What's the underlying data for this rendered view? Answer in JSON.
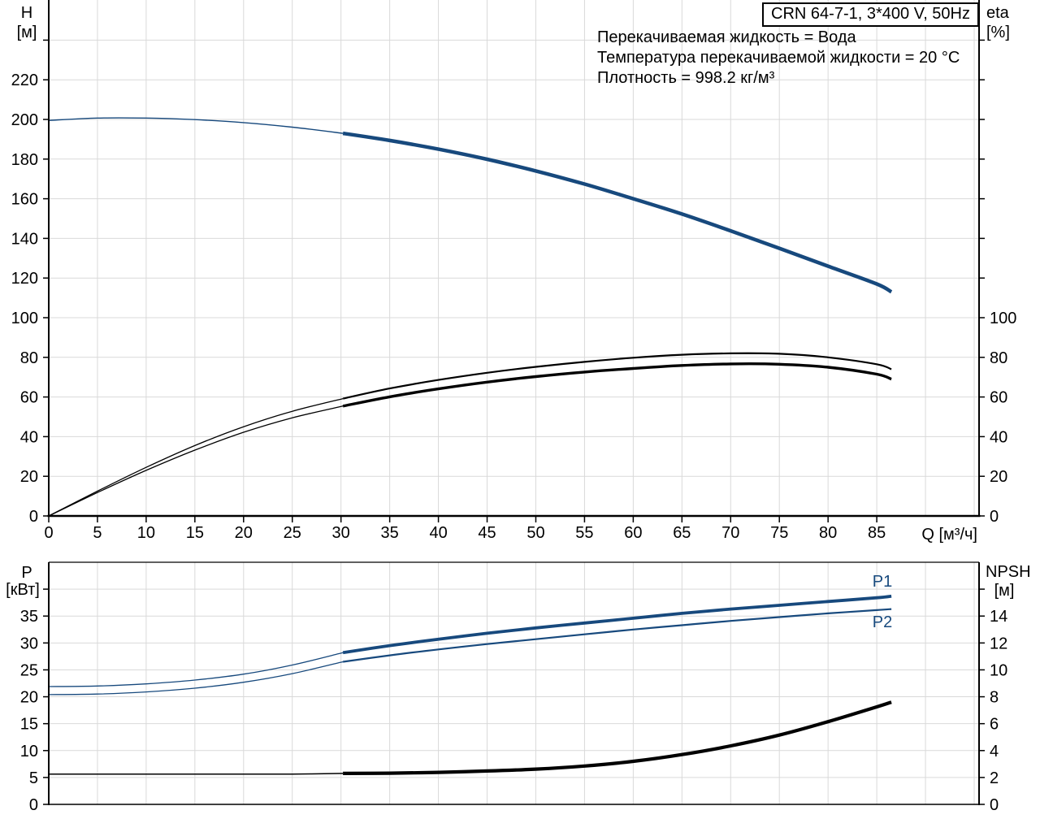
{
  "header": {
    "title": "CRN 64-7-1, 3*400 V, 50Hz",
    "info_lines": [
      "Перекачиваемая жидкость = Вода",
      "Температура перекачиваемой жидкости = 20 °C",
      "Плотность = 998.2 кг/м³"
    ]
  },
  "labels": {
    "h": "H",
    "h_unit": "[м]",
    "eta": "eta",
    "eta_unit": "[%]",
    "p": "P",
    "p_unit": "[кВт]",
    "npsh": "NPSH",
    "npsh_unit": "[м]",
    "q": "Q [м³/ч]",
    "p1": "P1",
    "p2": "P2"
  },
  "colors": {
    "curve_blue": "#17497d",
    "curve_black": "#000000",
    "grid": "#d9d9d9",
    "axis": "#000000"
  },
  "chart_data": {
    "type": "line",
    "title": "CRN 64-7-1, 3*400 V, 50Hz",
    "grid": "on",
    "x_axis": {
      "label": "Q [м³/ч]",
      "unit": "м³/ч",
      "lim": [
        0,
        95.5
      ],
      "ticks_labeled": [
        0,
        5,
        10,
        15,
        20,
        25,
        30,
        35,
        40,
        45,
        50,
        55,
        60,
        65,
        70,
        75,
        80,
        85
      ],
      "grid": [
        5,
        10,
        15,
        20,
        25,
        30,
        35,
        40,
        45,
        50,
        55,
        60,
        65,
        70,
        75,
        80,
        85,
        90,
        95
      ]
    },
    "top_chart": {
      "left_axis": {
        "label": "H [м]",
        "lim": [
          0,
          260
        ],
        "ticks": [
          0,
          20,
          40,
          60,
          80,
          100,
          120,
          140,
          160,
          180,
          200,
          220,
          240
        ],
        "tick_labels": [
          "0",
          "20",
          "40",
          "60",
          "80",
          "100",
          "120",
          "140",
          "160",
          "180",
          "200",
          "220"
        ],
        "grid": [
          20,
          40,
          60,
          80,
          100,
          120,
          140,
          160,
          180,
          200,
          220,
          240
        ]
      },
      "right_axis": {
        "label": "eta [%]",
        "lim": [
          0,
          100
        ],
        "ticks": [
          0,
          20,
          40,
          60,
          80,
          100,
          120,
          140,
          160,
          180,
          200,
          220,
          240
        ],
        "tick_labels": [
          "0",
          "20",
          "40",
          "60",
          "80",
          "100"
        ],
        "note": "1 % per 1 м of left axis"
      }
    },
    "bottom_chart": {
      "left_axis": {
        "label": "P [кВт]",
        "lim": [
          0,
          45
        ],
        "ticks": [
          0,
          5,
          10,
          15,
          20,
          25,
          30,
          35,
          40
        ],
        "tick_labels": [
          "0",
          "5",
          "10",
          "15",
          "20",
          "25",
          "30",
          "35"
        ],
        "grid": [
          5,
          10,
          15,
          20,
          25,
          30,
          35,
          40
        ]
      },
      "right_axis": {
        "label": "NPSH [м]",
        "lim": [
          0,
          18
        ],
        "ticks": [
          0,
          2,
          4,
          6,
          8,
          10,
          12,
          14,
          16
        ],
        "tick_labels": [
          "0",
          "2",
          "4",
          "6",
          "8",
          "10",
          "12",
          "14"
        ]
      }
    },
    "series": [
      {
        "name": "qh-full-range",
        "chart": "top",
        "scale": "H",
        "color": "blue",
        "width": 1.4,
        "x": [
          0,
          5,
          10,
          15,
          20,
          25,
          30.2
        ],
        "y": [
          199.5,
          200.7,
          200.7,
          199.9,
          198.4,
          196.1,
          193.0
        ]
      },
      {
        "name": "qh-duty-range",
        "chart": "top",
        "scale": "H",
        "color": "blue",
        "width": 4.5,
        "x": [
          30.2,
          35,
          40,
          45,
          50,
          55,
          60,
          65,
          70,
          75,
          80,
          85,
          86.5
        ],
        "y": [
          193.0,
          189.4,
          185.0,
          179.9,
          174.0,
          167.4,
          160.0,
          152.3,
          143.8,
          135.0,
          126.0,
          117.0,
          113.0
        ]
      },
      {
        "name": "eta-pump-full-range",
        "chart": "top",
        "scale": "eta",
        "color": "black",
        "width": 1.3,
        "x": [
          0,
          5,
          10,
          15,
          20,
          25,
          30.2
        ],
        "y": [
          0,
          12.5,
          24.5,
          35.5,
          45.0,
          52.8,
          59.2
        ]
      },
      {
        "name": "eta-pump-duty-range",
        "chart": "top",
        "scale": "eta",
        "color": "black",
        "width": 2.2,
        "x": [
          30.2,
          35,
          40,
          45,
          50,
          55,
          60,
          65,
          70,
          75,
          80,
          85,
          86.5
        ],
        "y": [
          59.2,
          64.3,
          68.6,
          72.2,
          75.2,
          77.7,
          79.8,
          81.3,
          82.0,
          81.8,
          80.0,
          76.5,
          74.0
        ]
      },
      {
        "name": "eta-total-full-range",
        "chart": "top",
        "scale": "eta",
        "color": "black",
        "width": 1.3,
        "x": [
          0,
          5,
          10,
          15,
          20,
          25,
          30.2
        ],
        "y": [
          0,
          11.8,
          23.0,
          33.2,
          42.2,
          49.5,
          55.4
        ]
      },
      {
        "name": "eta-total-duty-range",
        "chart": "top",
        "scale": "eta",
        "color": "black",
        "width": 3.4,
        "x": [
          30.2,
          35,
          40,
          45,
          50,
          55,
          60,
          65,
          70,
          75,
          80,
          85,
          86.5
        ],
        "y": [
          55.4,
          60.1,
          64.1,
          67.5,
          70.3,
          72.6,
          74.4,
          75.9,
          76.7,
          76.5,
          75.0,
          71.5,
          69.0
        ]
      },
      {
        "name": "p1-full-range",
        "chart": "bottom",
        "scale": "P",
        "color": "blue",
        "width": 1.3,
        "x": [
          0,
          5,
          10,
          15,
          20,
          25,
          30.2
        ],
        "y": [
          21.9,
          22.0,
          22.4,
          23.1,
          24.2,
          25.9,
          28.2
        ]
      },
      {
        "name": "p1-duty-range",
        "chart": "bottom",
        "scale": "P",
        "color": "blue",
        "width": 3.8,
        "x": [
          30.2,
          35,
          40,
          45,
          50,
          55,
          60,
          65,
          70,
          75,
          80,
          85,
          86.5
        ],
        "y": [
          28.2,
          29.5,
          30.7,
          31.8,
          32.8,
          33.7,
          34.6,
          35.5,
          36.3,
          37.0,
          37.7,
          38.4,
          38.7
        ]
      },
      {
        "name": "p2-full-range",
        "chart": "bottom",
        "scale": "P",
        "color": "blue",
        "width": 1.3,
        "x": [
          0,
          5,
          10,
          15,
          20,
          25,
          30.2
        ],
        "y": [
          20.4,
          20.5,
          20.9,
          21.6,
          22.7,
          24.3,
          26.5
        ]
      },
      {
        "name": "p2-duty-range",
        "chart": "bottom",
        "scale": "P",
        "color": "blue",
        "width": 2.2,
        "x": [
          30.2,
          35,
          40,
          45,
          50,
          55,
          60,
          65,
          70,
          75,
          80,
          85,
          86.5
        ],
        "y": [
          26.5,
          27.7,
          28.8,
          29.8,
          30.7,
          31.6,
          32.5,
          33.3,
          34.1,
          34.8,
          35.5,
          36.1,
          36.3
        ]
      },
      {
        "name": "npsh-full-range",
        "chart": "bottom",
        "scale": "NPSH",
        "color": "black",
        "width": 1.5,
        "x": [
          0,
          5,
          10,
          15,
          20,
          25,
          30.2
        ],
        "y": [
          2.25,
          2.25,
          2.25,
          2.25,
          2.25,
          2.25,
          2.3
        ]
      },
      {
        "name": "npsh-duty-range",
        "chart": "bottom",
        "scale": "NPSH",
        "color": "black",
        "width": 4.2,
        "x": [
          30.2,
          35,
          40,
          45,
          50,
          55,
          60,
          65,
          70,
          75,
          80,
          85,
          86.5
        ],
        "y": [
          2.3,
          2.32,
          2.38,
          2.48,
          2.62,
          2.85,
          3.2,
          3.7,
          4.35,
          5.15,
          6.15,
          7.25,
          7.6
        ]
      }
    ]
  }
}
